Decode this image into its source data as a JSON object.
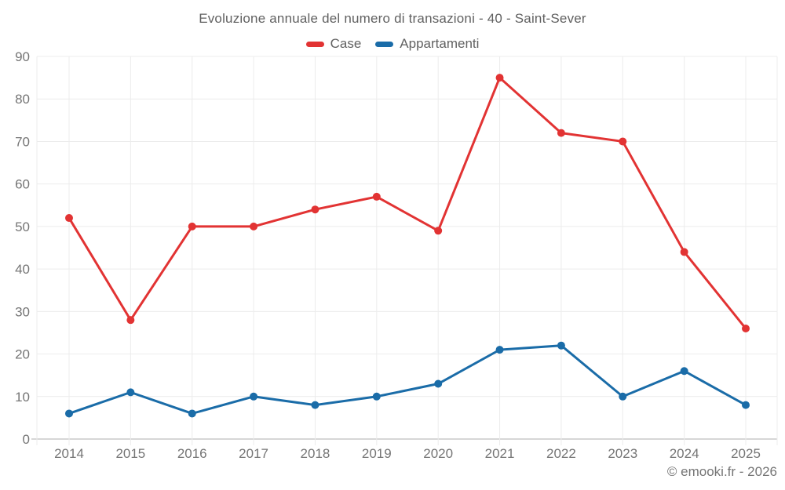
{
  "chart_data": {
    "type": "line",
    "title": "Evoluzione annuale del numero di transazioni - 40 - Saint-Sever",
    "categories": [
      "2014",
      "2015",
      "2016",
      "2017",
      "2018",
      "2019",
      "2020",
      "2021",
      "2022",
      "2023",
      "2024",
      "2025"
    ],
    "series": [
      {
        "name": "Case",
        "color": "#e23333",
        "values": [
          52,
          28,
          50,
          50,
          54,
          57,
          49,
          85,
          72,
          70,
          44,
          26
        ]
      },
      {
        "name": "Appartamenti",
        "color": "#1a6ca8",
        "values": [
          6,
          11,
          6,
          10,
          8,
          10,
          13,
          21,
          22,
          10,
          16,
          8
        ]
      }
    ],
    "y_ticks": [
      0,
      10,
      20,
      30,
      40,
      50,
      60,
      70,
      80,
      90
    ],
    "ylim": [
      0,
      90
    ],
    "grid": true,
    "legend_position": "top",
    "xlabel": "",
    "ylabel": ""
  },
  "footer": {
    "credit": "© emooki.fr - 2026"
  },
  "style_colors": {
    "grid": "#ececec",
    "axis": "#c9c9c9",
    "tick_text": "#757575",
    "title_text": "#616161"
  }
}
